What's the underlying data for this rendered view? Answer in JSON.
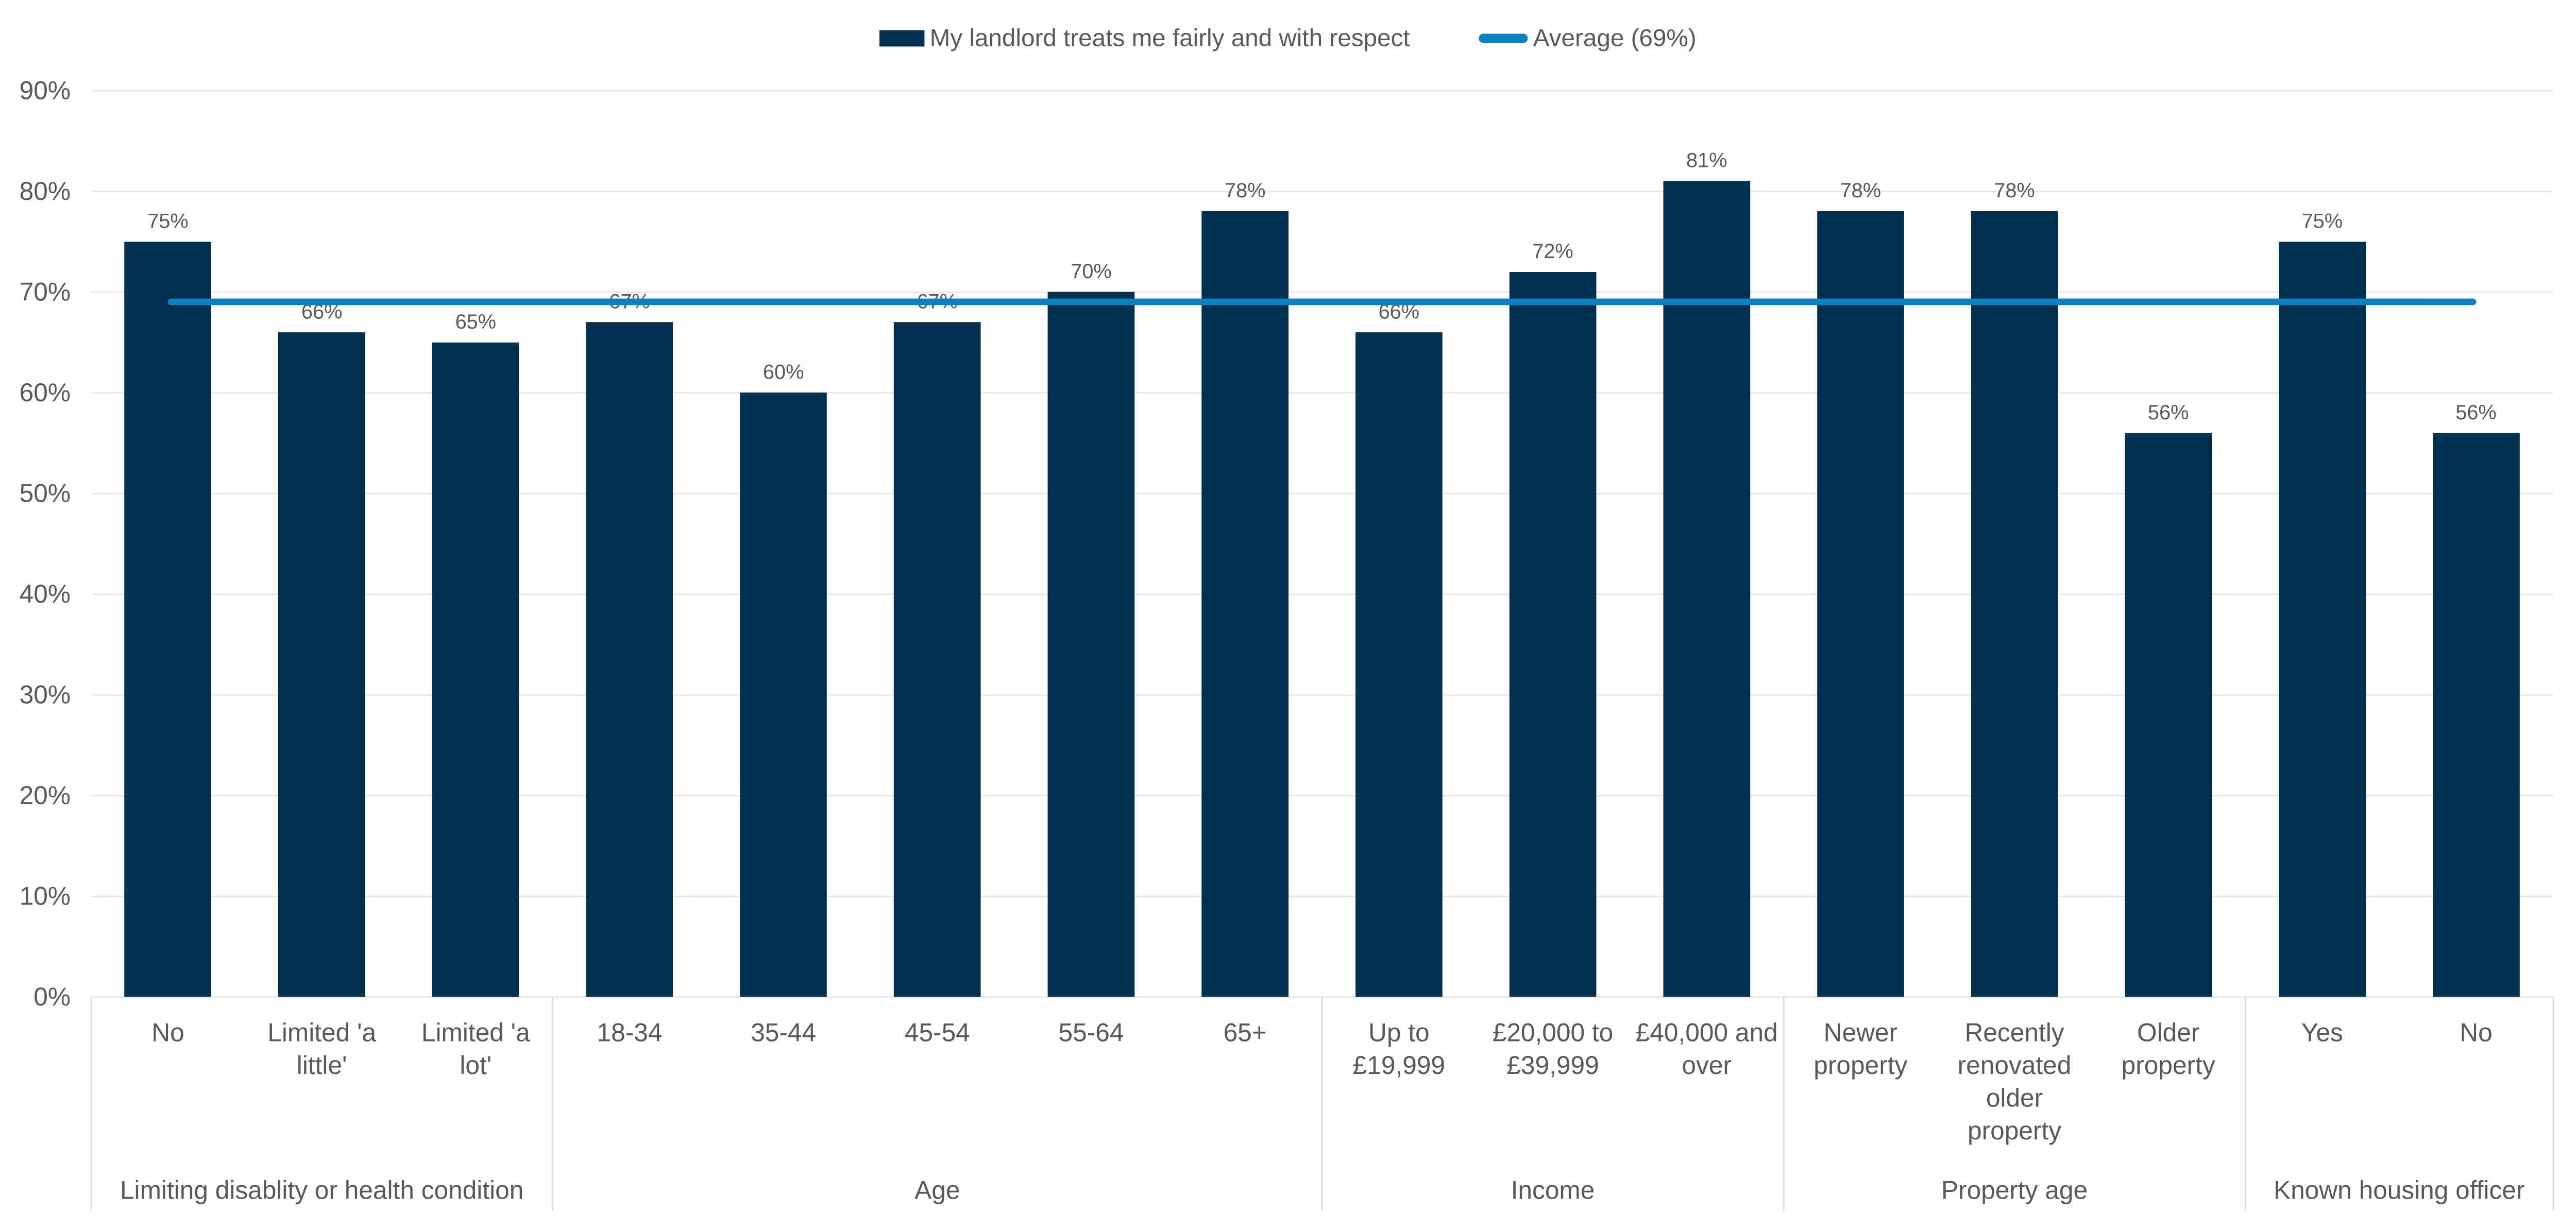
{
  "chart_data": {
    "type": "bar",
    "title": "",
    "series_label": "My landlord treats me fairly and with respect",
    "average_line": {
      "label": "Average (69%)",
      "value": 69
    },
    "y_axis": {
      "min": 0,
      "max": 90,
      "step": 10,
      "tick_suffix": "%",
      "grid": "horizontal"
    },
    "data_label_suffix": "%",
    "legend_position": "top-center",
    "groups": [
      {
        "label": "Limiting disablity or health condition",
        "categories": [
          {
            "label": "No",
            "value": 75
          },
          {
            "label": "Limited 'a\nlittle'",
            "value": 66
          },
          {
            "label": "Limited 'a\nlot'",
            "value": 65
          }
        ]
      },
      {
        "label": "Age",
        "categories": [
          {
            "label": "18-34",
            "value": 67
          },
          {
            "label": "35-44",
            "value": 60
          },
          {
            "label": "45-54",
            "value": 67
          },
          {
            "label": "55-64",
            "value": 70
          },
          {
            "label": "65+",
            "value": 78
          }
        ]
      },
      {
        "label": "Income",
        "categories": [
          {
            "label": "Up to\n£19,999",
            "value": 66
          },
          {
            "label": "£20,000 to\n£39,999",
            "value": 72
          },
          {
            "label": "£40,000 and\nover",
            "value": 81
          }
        ]
      },
      {
        "label": "Property age",
        "categories": [
          {
            "label": "Newer\nproperty",
            "value": 78
          },
          {
            "label": "Recently\nrenovated\nolder\nproperty",
            "value": 78
          },
          {
            "label": "Older\nproperty",
            "value": 56
          }
        ]
      },
      {
        "label": "Known housing officer",
        "categories": [
          {
            "label": "Yes",
            "value": 75
          },
          {
            "label": "No",
            "value": 56
          }
        ]
      }
    ],
    "colors": {
      "bar": "#04304F",
      "average_line": "#0D80C0",
      "gridline": "#E7E7E7",
      "divider": "#DCDCDC",
      "axis_text": "#595959",
      "background": "#FFFFFF"
    }
  }
}
